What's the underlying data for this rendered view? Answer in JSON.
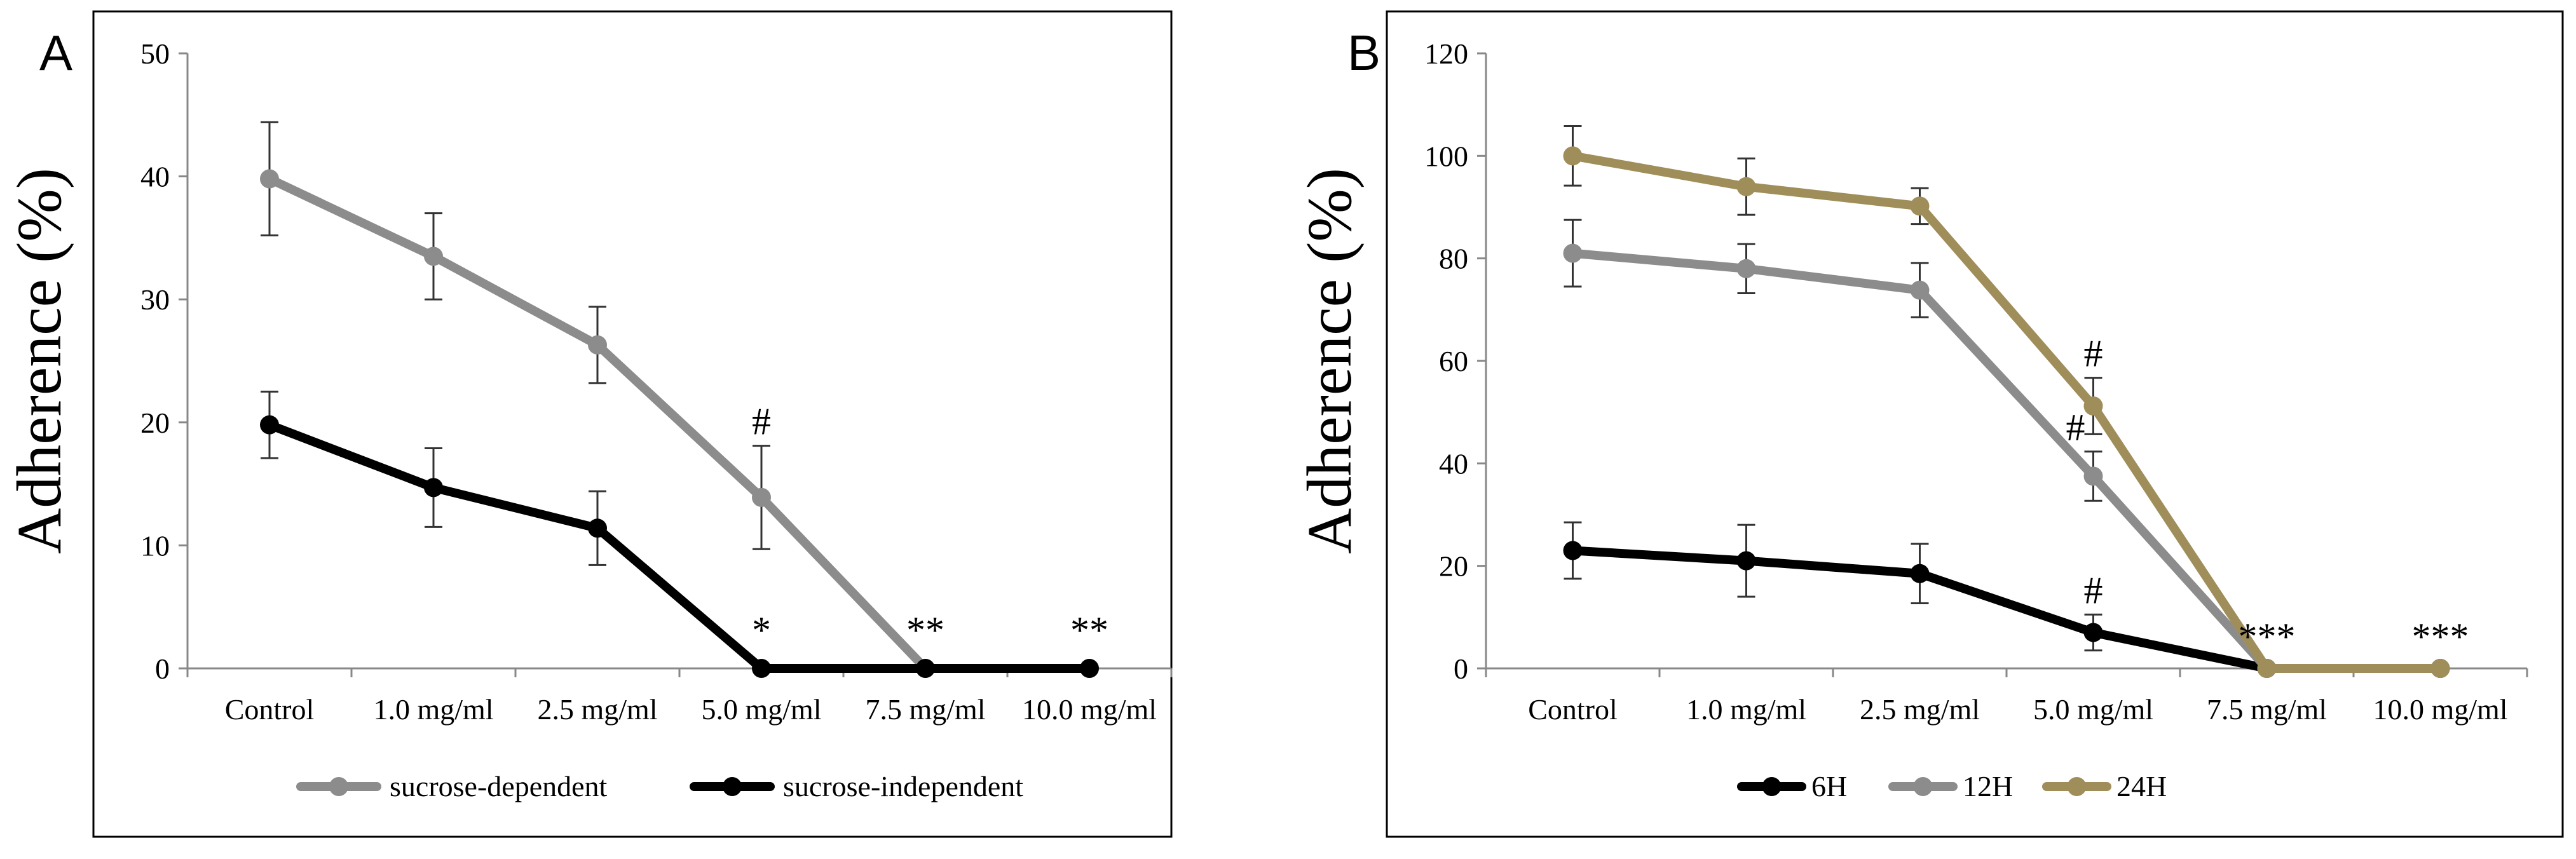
{
  "chart_data": [
    {
      "panel": "A",
      "type": "line",
      "title": "",
      "xlabel": "",
      "ylabel": "Adherence (%)",
      "ylim": [
        0,
        50
      ],
      "yticks": [
        0,
        10,
        20,
        30,
        40,
        50
      ],
      "categories": [
        "Control",
        "1.0 mg/ml",
        "2.5 mg/ml",
        "5.0 mg/ml",
        "7.5 mg/ml",
        "10.0 mg/ml"
      ],
      "legend_position": "bottom",
      "series": [
        {
          "name": "sucrose-dependent",
          "color": "#8c8c8c",
          "values": [
            39.8,
            33.5,
            26.3,
            13.9,
            0,
            0
          ],
          "errors": [
            4.6,
            3.5,
            3.1,
            4.2,
            0,
            0
          ],
          "annotations": [
            "",
            "",
            "",
            "#",
            "",
            ""
          ]
        },
        {
          "name": "sucrose-independent",
          "color": "#000000",
          "values": [
            19.8,
            14.7,
            11.4,
            0,
            0,
            0
          ],
          "errors": [
            2.7,
            3.2,
            3.0,
            0,
            0,
            0
          ],
          "annotations": [
            "",
            "",
            "",
            "*",
            "**",
            "**"
          ]
        }
      ]
    },
    {
      "panel": "B",
      "type": "line",
      "title": "",
      "xlabel": "",
      "ylabel": "Adherence (%)",
      "ylim": [
        0,
        120
      ],
      "yticks": [
        0,
        20,
        40,
        60,
        80,
        100,
        120
      ],
      "categories": [
        "Control",
        "1.0 mg/ml",
        "2.5 mg/ml",
        "5.0 mg/ml",
        "7.5 mg/ml",
        "10.0 mg/ml"
      ],
      "legend_position": "bottom",
      "series": [
        {
          "name": "6H",
          "color": "#000000",
          "values": [
            23,
            21,
            18.5,
            7,
            0,
            0
          ],
          "errors": [
            5.5,
            7,
            5.8,
            3.5,
            0,
            0
          ],
          "annotations": [
            "",
            "",
            "",
            "#",
            "",
            ""
          ]
        },
        {
          "name": "12H",
          "color": "#8c8c8c",
          "values": [
            81,
            78,
            73.8,
            37.5,
            0,
            0
          ],
          "errors": [
            6.5,
            4.8,
            5.3,
            4.8,
            0,
            0
          ],
          "annotations": [
            "",
            "",
            "",
            "#",
            "",
            ""
          ]
        },
        {
          "name": "24H",
          "color": "#a08e5a",
          "values": [
            100,
            94,
            90.2,
            51.2,
            0,
            0
          ],
          "errors": [
            5.8,
            5.5,
            3.5,
            5.5,
            0,
            0
          ],
          "annotations": [
            "",
            "",
            "",
            "#",
            "***",
            "***"
          ]
        }
      ]
    }
  ]
}
